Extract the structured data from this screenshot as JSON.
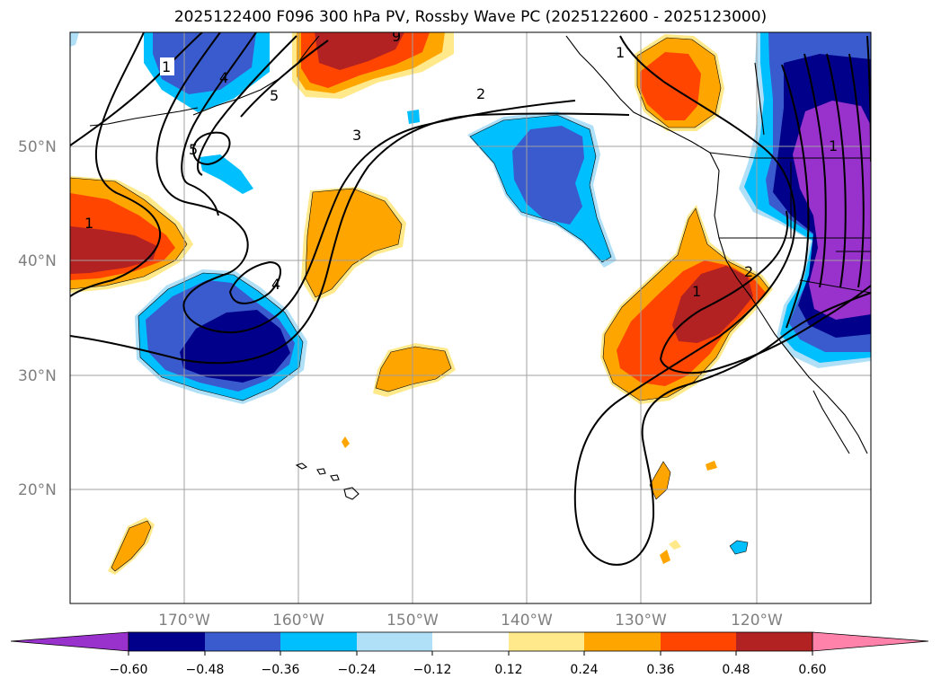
{
  "title": "2025122400 F096 300 hPa PV, Rossby Wave PC (2025122600 - 2025123000)",
  "map": {
    "lat_labels": [
      "50°N",
      "40°N",
      "30°N",
      "20°N"
    ],
    "lon_labels": [
      "170°W",
      "160°W",
      "150°W",
      "140°W",
      "130°W",
      "120°W"
    ],
    "gridline_color": "#a0a0a0",
    "pv_contour_labels": [
      "1",
      "1",
      "1",
      "1",
      "1",
      "2",
      "2",
      "3",
      "4",
      "4",
      "5",
      "5",
      "9"
    ]
  },
  "colorbar": {
    "tick_labels": [
      "−0.60",
      "−0.48",
      "−0.36",
      "−0.24",
      "−0.12",
      "0.12",
      "0.24",
      "0.36",
      "0.48",
      "0.60"
    ],
    "colors": [
      "#9932cc",
      "#00008b",
      "#3a5bcd",
      "#00bfff",
      "#b0e0f8",
      "#ffffff",
      "#ffe98a",
      "#ffa500",
      "#ff4500",
      "#b22222",
      "#ff82ab"
    ]
  }
}
